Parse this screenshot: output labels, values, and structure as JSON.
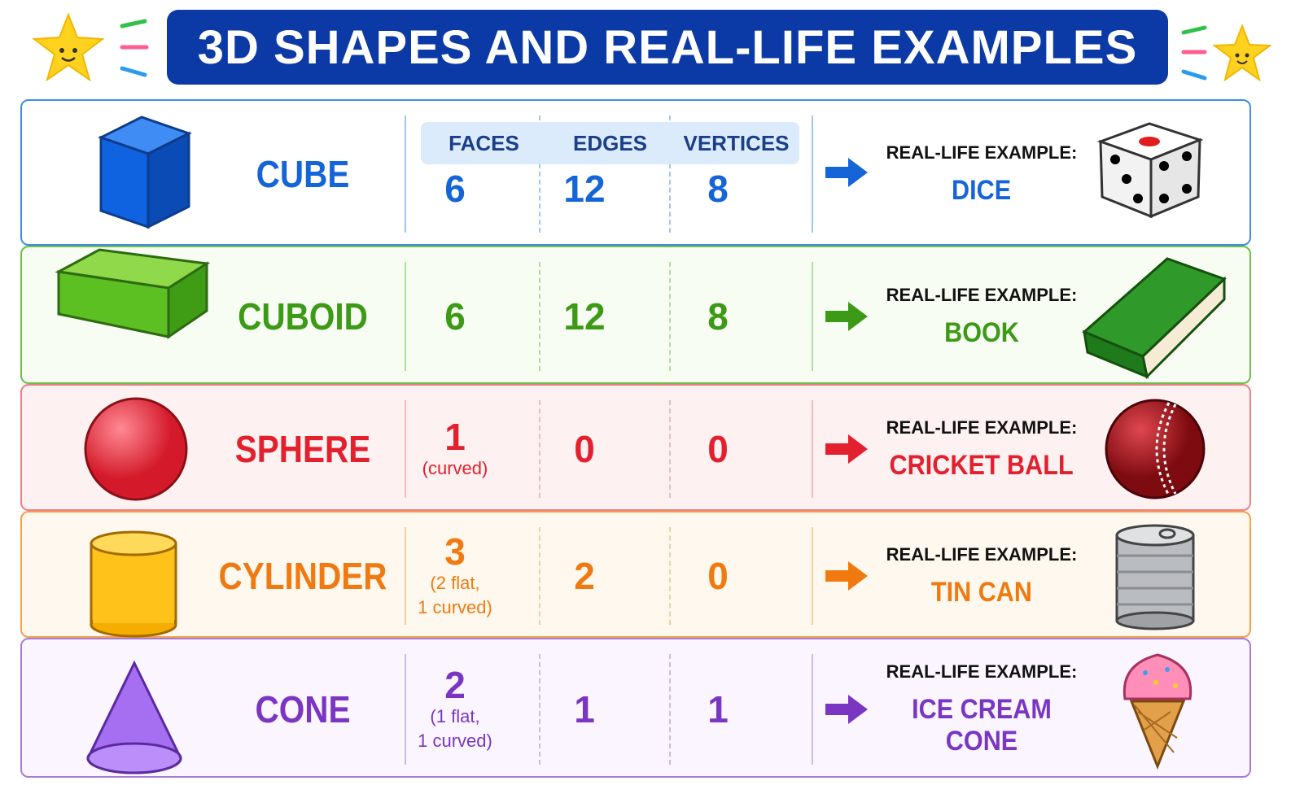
{
  "title": "3D SHAPES AND REAL-LIFE EXAMPLES",
  "table": {
    "headers": [
      "FACES",
      "EDGES",
      "VERTICES"
    ],
    "rows": [
      {
        "shape": "CUBE",
        "faces": "6",
        "edges": "12",
        "vertices": "8",
        "example_label": "REAL-LIFE EXAMPLE:",
        "example": "DICE"
      },
      {
        "shape": "CUBOID",
        "faces": "6",
        "edges": "12",
        "vertices": "8",
        "example_label": "REAL-LIFE EXAMPLE:",
        "example": "BOOK"
      },
      {
        "shape": "SPHERE",
        "faces": "1",
        "faces_note": [
          "(curved)"
        ],
        "edges": "0",
        "vertices": "0",
        "example_label": "REAL-LIFE EXAMPLE:",
        "example": "CRICKET BALL"
      },
      {
        "shape": "CYLINDER",
        "faces": "3",
        "faces_note": [
          "(2 flat,",
          "1 curved)"
        ],
        "edges": "2",
        "vertices": "0",
        "example_label": "REAL-LIFE EXAMPLE:",
        "example": "TIN CAN"
      },
      {
        "shape": "CONE",
        "faces": "2",
        "faces_note": [
          "(1 flat,",
          "1 curved)"
        ],
        "edges": "1",
        "vertices": "1",
        "example_label": "REAL-LIFE EXAMPLE:",
        "example": "ICE CREAM CONE"
      }
    ]
  }
}
